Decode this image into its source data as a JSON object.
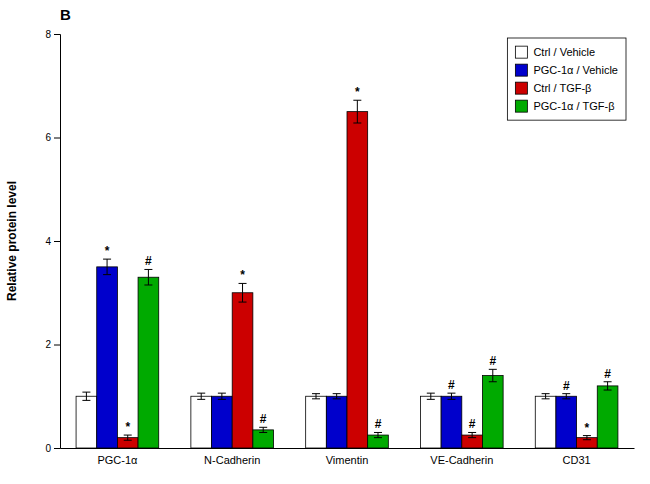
{
  "chart_data": {
    "type": "bar",
    "title": "B",
    "y_label": "Relative protein level",
    "categories": [
      "PGC-1α",
      "N-Cadherin",
      "Vimentin",
      "VE-Cadherin",
      "CD31"
    ],
    "series": [
      {
        "name": "Ctrl / Vehicle",
        "color": "#ffffff",
        "values": [
          1.0,
          1.0,
          1.0,
          1.0,
          1.0
        ],
        "errors": [
          0.08,
          0.06,
          0.05,
          0.06,
          0.05
        ]
      },
      {
        "name": "PGC-1α / Vehicle",
        "color": "#0000cc",
        "values": [
          3.5,
          1.0,
          1.0,
          1.0,
          1.0
        ],
        "errors": [
          0.15,
          0.06,
          0.05,
          0.06,
          0.05
        ]
      },
      {
        "name": "Ctrl / TGF-β",
        "color": "#cc0000",
        "values": [
          0.2,
          3.0,
          6.5,
          0.25,
          0.2
        ],
        "errors": [
          0.05,
          0.18,
          0.22,
          0.05,
          0.04
        ]
      },
      {
        "name": "PGC-1α / TGF-β",
        "color": "#00aa00",
        "values": [
          3.3,
          0.35,
          0.25,
          1.4,
          1.2
        ],
        "errors": [
          0.15,
          0.05,
          0.05,
          0.12,
          0.08
        ]
      }
    ],
    "annotations": [
      {
        "category": 0,
        "series": 1,
        "text": "*"
      },
      {
        "category": 0,
        "series": 2,
        "text": "*"
      },
      {
        "category": 0,
        "series": 3,
        "text": "#"
      },
      {
        "category": 1,
        "series": 2,
        "text": "*"
      },
      {
        "category": 1,
        "series": 3,
        "text": "#"
      },
      {
        "category": 2,
        "series": 2,
        "text": "*"
      },
      {
        "category": 2,
        "series": 3,
        "text": "#"
      },
      {
        "category": 3,
        "series": 1,
        "text": "#"
      },
      {
        "category": 3,
        "series": 2,
        "text": "#"
      },
      {
        "category": 3,
        "series": 3,
        "text": "#"
      },
      {
        "category": 4,
        "series": 1,
        "text": "#"
      },
      {
        "category": 4,
        "series": 2,
        "text": "*"
      },
      {
        "category": 4,
        "series": 3,
        "text": "#"
      }
    ],
    "ylim": [
      0,
      8.0
    ],
    "yticks": [
      0,
      2,
      4,
      6,
      8
    ],
    "legend": "upper right"
  }
}
